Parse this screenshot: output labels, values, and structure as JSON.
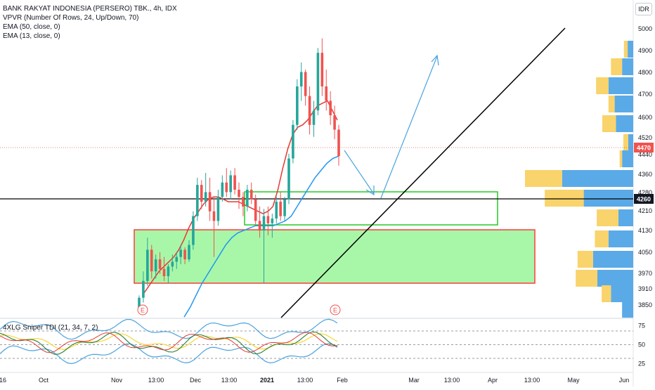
{
  "symbol": {
    "title": "BANK RAKYAT INDONESIA (PERSERO) TBK., 4h, IDX",
    "currency": "IDR"
  },
  "indicators": [
    "VPVR (Number Of Rows, 24, Up/Down, 70)",
    "EMA (50, close, 0)",
    "EMA (13, close, 0)"
  ],
  "tdi_legend": "4XLG Sniper TDI (21, 34, 7, 2)",
  "colors": {
    "up": "#26a69a",
    "down": "#ef5350",
    "ema13": "#e53935",
    "ema50": "#2196f3",
    "vp_up": "#5aaae8",
    "vp_down": "#f9d36b",
    "zone_fill": "#a8f7a8",
    "zone_border_red": "#ff3b3b",
    "zone_border_green": "#22cc22",
    "arrow": "#4aa3df"
  },
  "chart_data": {
    "type": "candlestick",
    "y_axis_ticks": [
      "5000",
      "4900",
      "4800",
      "4700",
      "4600",
      "4520",
      "4440",
      "4360",
      "4280",
      "4210",
      "4130",
      "4050",
      "3970",
      "3910",
      "3850"
    ],
    "x_axis_ticks": [
      "16",
      "Oct",
      "Nov",
      "13:00",
      "Dec",
      "13:00",
      "2021",
      "13:00",
      "Feb",
      "Mar",
      "13:00",
      "Apr",
      "13:00",
      "May",
      "Jun"
    ],
    "last_price": "4470",
    "horizontal_level": "4260",
    "ylim": [
      3800,
      5020
    ],
    "candles": [
      [
        3830,
        3890,
        3820,
        3880
      ],
      [
        3880,
        3990,
        3860,
        3950
      ],
      [
        3950,
        4130,
        3930,
        4080
      ],
      [
        4080,
        4100,
        3960,
        3990
      ],
      [
        3990,
        4060,
        3960,
        4040
      ],
      [
        4040,
        4070,
        3980,
        4000
      ],
      [
        4000,
        4050,
        3950,
        3970
      ],
      [
        3970,
        4020,
        3940,
        4010
      ],
      [
        4010,
        4060,
        3990,
        4030
      ],
      [
        4030,
        4070,
        4000,
        4050
      ],
      [
        4050,
        4100,
        4020,
        4080
      ],
      [
        4080,
        4090,
        4020,
        4040
      ],
      [
        4040,
        4120,
        4030,
        4100
      ],
      [
        4100,
        4240,
        4080,
        4220
      ],
      [
        4220,
        4380,
        4200,
        4350
      ],
      [
        4350,
        4370,
        4250,
        4280
      ],
      [
        4280,
        4400,
        4260,
        4320
      ],
      [
        4320,
        4380,
        4200,
        4240
      ],
      [
        4240,
        4300,
        4050,
        4200
      ],
      [
        4200,
        4330,
        4180,
        4300
      ],
      [
        4300,
        4390,
        4280,
        4360
      ],
      [
        4360,
        4420,
        4300,
        4320
      ],
      [
        4320,
        4410,
        4290,
        4390
      ],
      [
        4390,
        4420,
        4310,
        4330
      ],
      [
        4330,
        4360,
        4250,
        4300
      ],
      [
        4300,
        4320,
        4220,
        4260
      ],
      [
        4260,
        4350,
        4240,
        4330
      ],
      [
        4330,
        4360,
        4270,
        4290
      ],
      [
        4290,
        4310,
        4180,
        4200
      ],
      [
        4200,
        4260,
        4130,
        4160
      ],
      [
        4160,
        4250,
        3940,
        4220
      ],
      [
        4220,
        4260,
        4140,
        4190
      ],
      [
        4190,
        4230,
        4130,
        4210
      ],
      [
        4210,
        4300,
        4190,
        4280
      ],
      [
        4280,
        4320,
        4200,
        4220
      ],
      [
        4220,
        4300,
        4200,
        4290
      ],
      [
        4290,
        4480,
        4270,
        4460
      ],
      [
        4460,
        4620,
        4440,
        4600
      ],
      [
        4600,
        4790,
        4580,
        4760
      ],
      [
        4760,
        4860,
        4700,
        4820
      ],
      [
        4820,
        4830,
        4680,
        4720
      ],
      [
        4720,
        4760,
        4560,
        4600
      ],
      [
        4600,
        4700,
        4550,
        4660
      ],
      [
        4660,
        4920,
        4640,
        4900
      ],
      [
        4900,
        4960,
        4720,
        4760
      ],
      [
        4760,
        4830,
        4660,
        4700
      ],
      [
        4700,
        4740,
        4600,
        4640
      ],
      [
        4640,
        4680,
        4540,
        4580
      ],
      [
        4580,
        4600,
        4430,
        4470
      ]
    ],
    "ema13": [
      3900,
      3930,
      3960,
      3990,
      4010,
      4030,
      4050,
      4080,
      4120,
      4170,
      4210,
      4240,
      4270,
      4290,
      4300,
      4300,
      4290,
      4280,
      4280,
      4280,
      4270,
      4260,
      4250,
      4240,
      4230,
      4240,
      4260,
      4330,
      4420,
      4500,
      4560,
      4590,
      4600,
      4620,
      4650,
      4680,
      4690,
      4700,
      4660,
      4620
    ],
    "ema50": [
      3800,
      3840,
      3890,
      3940,
      3980,
      4020,
      4060,
      4100,
      4130,
      4150,
      4160,
      4170,
      4180,
      4180,
      4180,
      4180,
      4190,
      4200,
      4220,
      4260,
      4300,
      4340,
      4380,
      4410,
      4440,
      4460,
      4470
    ],
    "volume_profile": [
      {
        "price": "4900",
        "up": 9,
        "down": 6
      },
      {
        "price": "4840",
        "up": 18,
        "down": 18
      },
      {
        "price": "4760",
        "up": 40,
        "down": 20
      },
      {
        "price": "4680",
        "up": 30,
        "down": 10
      },
      {
        "price": "4600",
        "up": 28,
        "down": 22
      },
      {
        "price": "4520",
        "up": 8,
        "down": 8
      },
      {
        "price": "4440",
        "up": 18,
        "down": 4
      },
      {
        "price": "4360",
        "up": 115,
        "down": 60
      },
      {
        "price": "4280",
        "up": 80,
        "down": 63
      },
      {
        "price": "4210",
        "up": 24,
        "down": 35
      },
      {
        "price": "4130",
        "up": 40,
        "down": 22
      },
      {
        "price": "4050",
        "up": 65,
        "down": 25
      },
      {
        "price": "3970",
        "up": 58,
        "down": 35
      },
      {
        "price": "3910",
        "up": 36,
        "down": 15
      },
      {
        "price": "3850",
        "up": 18,
        "down": 0
      }
    ],
    "tdi": {
      "y_ticks": [
        "75",
        "50",
        "25"
      ],
      "ylim": [
        20,
        80
      ],
      "levels": [
        68,
        50,
        32
      ]
    }
  }
}
